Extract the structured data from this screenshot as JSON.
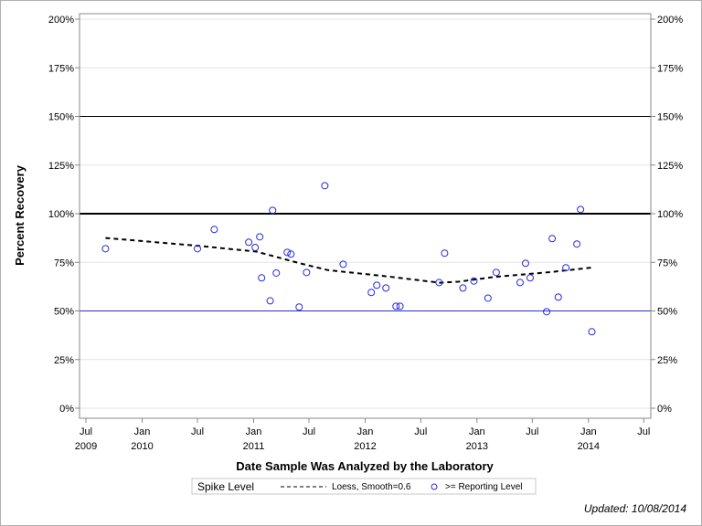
{
  "chart_data": {
    "type": "scatter",
    "title": "",
    "xlabel": "Date Sample Was Analyzed by the Laboratory",
    "ylabel": "Percent Recovery",
    "xlim": [
      "2009-06-10",
      "2014-07-24"
    ],
    "ylim": [
      0,
      200
    ],
    "y_ticks": [
      0,
      25,
      50,
      75,
      100,
      125,
      150,
      175,
      200
    ],
    "y_tick_labels": [
      "0%",
      "25%",
      "50%",
      "75%",
      "100%",
      "125%",
      "150%",
      "175%",
      "200%"
    ],
    "x_ticks": [
      {
        "date": "2009-07-01",
        "label": "Jul",
        "year": "2009"
      },
      {
        "date": "2010-01-01",
        "label": "Jan",
        "year": "2010"
      },
      {
        "date": "2010-07-01",
        "label": "Jul",
        "year": ""
      },
      {
        "date": "2011-01-01",
        "label": "Jan",
        "year": "2011"
      },
      {
        "date": "2011-07-01",
        "label": "Jul",
        "year": ""
      },
      {
        "date": "2012-01-01",
        "label": "Jan",
        "year": "2012"
      },
      {
        "date": "2012-07-01",
        "label": "Jul",
        "year": ""
      },
      {
        "date": "2013-01-01",
        "label": "Jan",
        "year": "2013"
      },
      {
        "date": "2013-07-01",
        "label": "Jul",
        "year": ""
      },
      {
        "date": "2014-01-01",
        "label": "Jan",
        "year": "2014"
      },
      {
        "date": "2014-07-01",
        "label": "Jul",
        "year": ""
      }
    ],
    "grid": true,
    "reference_lines": [
      {
        "value": 150,
        "color": "#000000",
        "style": "thin"
      },
      {
        "value": 100,
        "color": "#000000",
        "style": "thick"
      },
      {
        "value": 50,
        "color": "#2b2bd9",
        "style": "thin"
      }
    ],
    "series": [
      {
        "name": ">= Reporting Level",
        "type": "scatter",
        "color": "#2b2bd9",
        "points": [
          [
            "2009-09-03",
            82.0
          ],
          [
            "2010-07-01",
            82.0
          ],
          [
            "2010-08-25",
            91.9
          ],
          [
            "2010-12-16",
            85.3
          ],
          [
            "2011-01-06",
            82.6
          ],
          [
            "2011-01-21",
            88.1
          ],
          [
            "2011-01-27",
            67.0
          ],
          [
            "2011-02-24",
            55.2
          ],
          [
            "2011-03-04",
            101.7
          ],
          [
            "2011-03-16",
            69.5
          ],
          [
            "2011-04-21",
            80.1
          ],
          [
            "2011-05-03",
            79.2
          ],
          [
            "2011-05-30",
            52.0
          ],
          [
            "2011-06-23",
            69.8
          ],
          [
            "2011-08-22",
            114.4
          ],
          [
            "2011-10-21",
            74.0
          ],
          [
            "2012-01-21",
            59.5
          ],
          [
            "2012-02-08",
            63.2
          ],
          [
            "2012-03-09",
            61.8
          ],
          [
            "2012-04-11",
            52.4
          ],
          [
            "2012-04-24",
            52.4
          ],
          [
            "2012-08-30",
            64.6
          ],
          [
            "2012-09-17",
            79.7
          ],
          [
            "2012-11-16",
            61.8
          ],
          [
            "2012-12-22",
            65.4
          ],
          [
            "2013-02-06",
            56.6
          ],
          [
            "2013-03-05",
            69.8
          ],
          [
            "2013-05-22",
            64.6
          ],
          [
            "2013-06-09",
            74.5
          ],
          [
            "2013-06-24",
            67.0
          ],
          [
            "2013-08-17",
            49.6
          ],
          [
            "2013-09-04",
            87.2
          ],
          [
            "2013-09-24",
            57.1
          ],
          [
            "2013-10-19",
            72.2
          ],
          [
            "2013-11-24",
            84.4
          ],
          [
            "2013-12-06",
            102.2
          ],
          [
            "2014-01-12",
            39.3
          ]
        ]
      },
      {
        "name": "Loess, Smooth=0.6",
        "type": "line",
        "color": "#000000",
        "style": "dashed",
        "points": [
          [
            "2009-09-03",
            87.5
          ],
          [
            "2010-07-01",
            83.5
          ],
          [
            "2011-01-10",
            80.5
          ],
          [
            "2011-06-01",
            74.5
          ],
          [
            "2011-09-01",
            71.0
          ],
          [
            "2012-03-01",
            68.0
          ],
          [
            "2012-09-01",
            64.5
          ],
          [
            "2012-11-01",
            65.0
          ],
          [
            "2013-03-01",
            67.5
          ],
          [
            "2013-09-01",
            70.0
          ],
          [
            "2014-01-12",
            72.3
          ]
        ]
      }
    ],
    "legend": {
      "placement": "bottom",
      "title": "Spike Level",
      "entries": [
        "Loess, Smooth=0.6",
        ">= Reporting Level"
      ]
    }
  },
  "footer": {
    "updated": "Updated: 10/08/2014"
  }
}
